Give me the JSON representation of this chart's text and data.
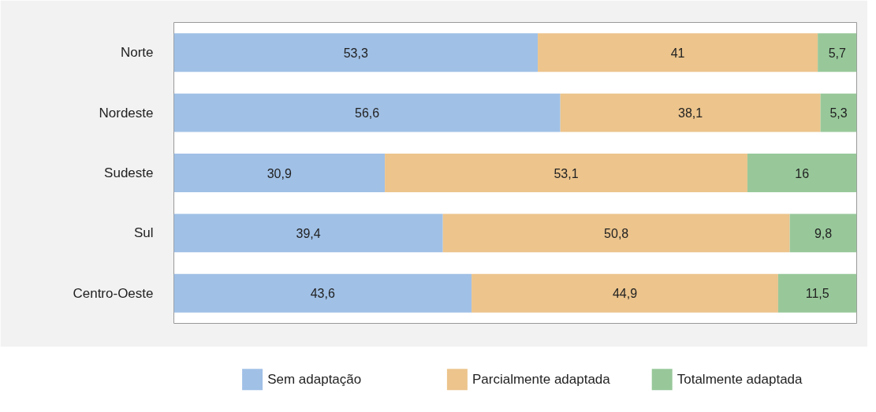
{
  "chart_data": {
    "type": "bar",
    "orientation": "horizontal",
    "stacked": true,
    "grid": false,
    "legend": "bottom",
    "tick_labels": "y",
    "categories": [
      "Norte",
      "Nordeste",
      "Sudeste",
      "Sul",
      "Centro-Oeste"
    ],
    "series": [
      {
        "name": "Sem adaptação",
        "color": "#a0c0e6",
        "values": [
          53.3,
          56.6,
          30.9,
          39.4,
          43.6
        ],
        "value_labels": [
          "53,3",
          "56,6",
          "30,9",
          "39,4",
          "43,6"
        ]
      },
      {
        "name": "Parcialmente adaptada",
        "color": "#ecc48c",
        "values": [
          41,
          38.1,
          53.1,
          50.8,
          44.9
        ],
        "value_labels": [
          "41",
          "38,1",
          "53,1",
          "50,8",
          "44,9"
        ]
      },
      {
        "name": "Totalmente adaptada",
        "color": "#98c89a",
        "values": [
          5.7,
          5.3,
          16,
          9.8,
          11.5
        ],
        "value_labels": [
          "5,7",
          "5,3",
          "16",
          "9,8",
          "11,5"
        ]
      }
    ]
  }
}
